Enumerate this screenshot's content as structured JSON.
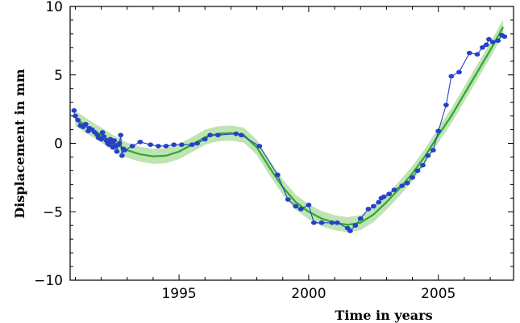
{
  "chart_data": {
    "type": "line",
    "title": "",
    "xlabel": "Time in years",
    "ylabel": "Displacement in mm",
    "xlim": [
      1990.8,
      2007.9
    ],
    "ylim": [
      -10,
      10
    ],
    "xticks": [
      1995,
      2000,
      2005
    ],
    "yticks": [
      -10,
      -5,
      0,
      5,
      10
    ],
    "grid": false,
    "legend": "none",
    "colors": {
      "observed": "#2541c8",
      "fit": "#2ea82e",
      "band": "#a9d99a"
    },
    "series": [
      {
        "kind": "observed",
        "x": [
          1990.95,
          1991.0,
          1991.1,
          1991.2,
          1991.3,
          1991.4,
          1991.5,
          1991.55,
          1991.65,
          1991.75,
          1991.85,
          1991.9,
          1992.0,
          1992.05,
          1992.1,
          1992.2,
          1992.25,
          1992.3,
          1992.35,
          1992.4,
          1992.45,
          1992.5,
          1992.55,
          1992.6,
          1992.65,
          1992.7,
          1992.75,
          1992.8,
          1992.85,
          1992.9,
          1993.2,
          1993.5,
          1993.9,
          1994.2,
          1994.5,
          1994.8,
          1995.1,
          1995.5,
          1995.7,
          1996.0,
          1996.2,
          1996.5,
          1997.2,
          1997.4,
          1998.1,
          1998.8,
          1999.2,
          1999.5,
          1999.7,
          2000.0,
          2000.2,
          2000.5,
          2000.9,
          2001.1,
          2001.5,
          2001.6,
          2001.8,
          2002.0,
          2002.3,
          2002.5,
          2002.7,
          2002.8,
          2002.9,
          2003.1,
          2003.3,
          2003.6,
          2003.8,
          2004.0,
          2004.2,
          2004.4,
          2004.6,
          2004.8,
          2005.0,
          2005.3,
          2005.5,
          2005.8,
          2006.2,
          2006.5,
          2006.7,
          2006.85,
          2006.95,
          2007.1,
          2007.3,
          2007.45,
          2007.55
        ],
        "values": [
          2.4,
          2.0,
          1.7,
          1.3,
          1.2,
          1.4,
          0.9,
          1.1,
          1.0,
          0.8,
          0.6,
          0.4,
          0.3,
          0.8,
          0.5,
          0.2,
          0.0,
          -0.1,
          0.3,
          0.1,
          -0.3,
          0.2,
          -0.2,
          -0.6,
          -0.1,
          0.0,
          0.6,
          -0.9,
          -0.4,
          -0.5,
          -0.2,
          0.1,
          -0.1,
          -0.2,
          -0.2,
          -0.1,
          -0.1,
          -0.1,
          0.0,
          0.3,
          0.6,
          0.6,
          0.7,
          0.6,
          -0.2,
          -2.3,
          -4.1,
          -4.6,
          -4.8,
          -4.5,
          -5.8,
          -5.8,
          -5.8,
          -5.8,
          -6.2,
          -6.4,
          -6.0,
          -5.5,
          -4.8,
          -4.6,
          -4.3,
          -4.0,
          -3.9,
          -3.7,
          -3.4,
          -3.1,
          -2.9,
          -2.5,
          -2.0,
          -1.6,
          -0.9,
          -0.5,
          0.9,
          2.8,
          4.9,
          5.2,
          6.6,
          6.5,
          7.0,
          7.2,
          7.6,
          7.4,
          7.5,
          7.9,
          7.8
        ]
      },
      {
        "kind": "fit",
        "x": [
          1991.0,
          1991.5,
          1992.0,
          1992.5,
          1993.0,
          1993.5,
          1994.0,
          1994.5,
          1995.0,
          1995.5,
          1996.0,
          1996.5,
          1997.0,
          1997.5,
          1998.0,
          1998.5,
          1999.0,
          1999.5,
          2000.0,
          2000.5,
          2001.0,
          2001.5,
          2002.0,
          2002.5,
          2003.0,
          2003.5,
          2004.0,
          2004.5,
          2005.0,
          2005.5,
          2006.0,
          2006.5,
          2007.0,
          2007.5
        ],
        "values": [
          1.8,
          1.2,
          0.6,
          0.0,
          -0.5,
          -0.8,
          -0.95,
          -0.9,
          -0.6,
          -0.1,
          0.45,
          0.7,
          0.75,
          0.6,
          -0.3,
          -1.8,
          -3.2,
          -4.3,
          -5.0,
          -5.5,
          -5.8,
          -5.95,
          -5.8,
          -5.2,
          -4.3,
          -3.3,
          -2.2,
          -0.9,
          0.6,
          2.0,
          3.6,
          5.2,
          6.8,
          8.5
        ]
      }
    ]
  }
}
